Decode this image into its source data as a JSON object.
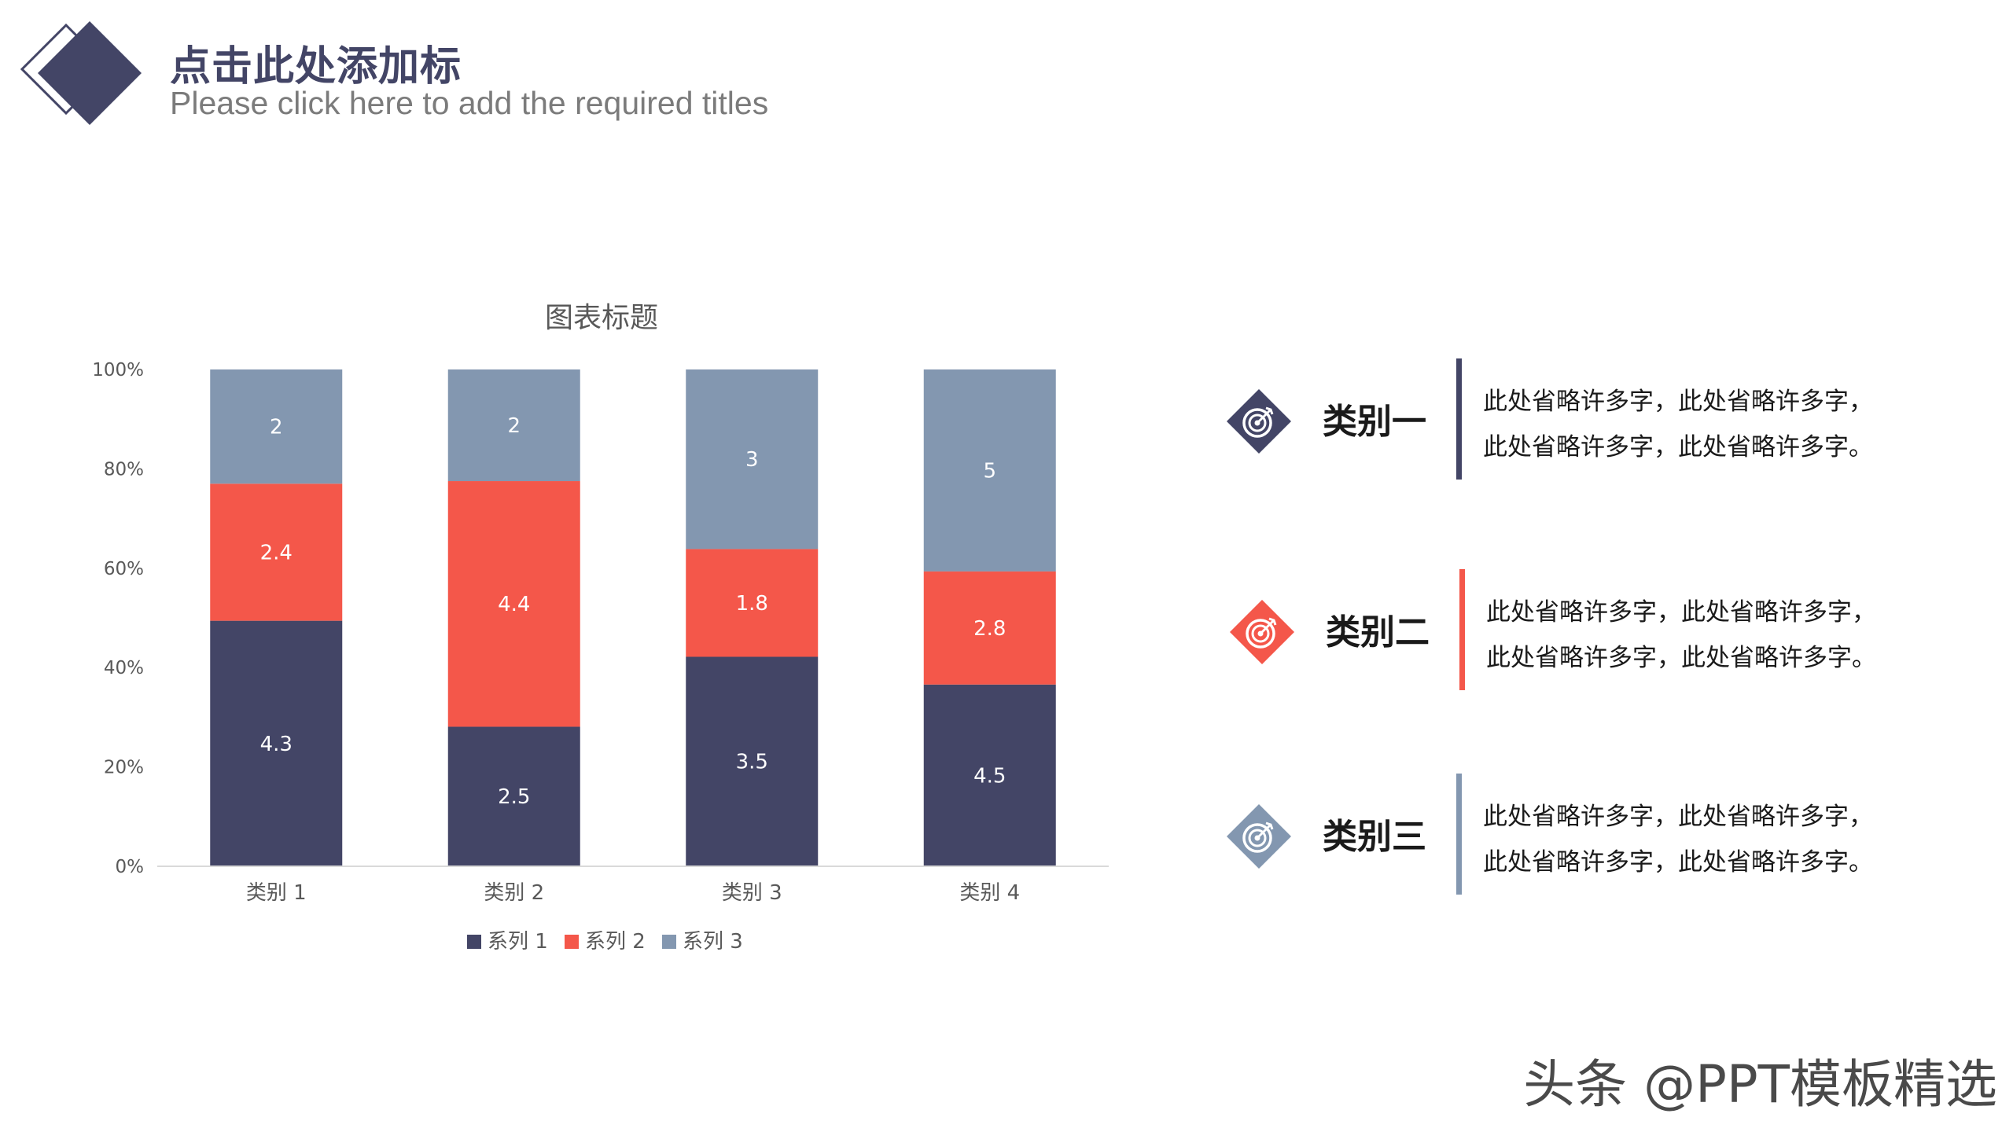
{
  "header": {
    "title": "点击此处添加标",
    "subtitle": "Please click here to add the required titles"
  },
  "colors": {
    "navy": "#434566",
    "red": "#f4574a",
    "slate": "#8397b0",
    "axis_text": "#595959"
  },
  "chart_data": {
    "type": "bar",
    "stacked": "percent",
    "title": "图表标题",
    "categories": [
      "类别 1",
      "类别 2",
      "类别 3",
      "类别 4"
    ],
    "series": [
      {
        "name": "系列 1",
        "values": [
          4.3,
          2.5,
          3.5,
          4.5
        ],
        "color": "#434566"
      },
      {
        "name": "系列 2",
        "values": [
          2.4,
          4.4,
          1.8,
          2.8
        ],
        "color": "#f4574a"
      },
      {
        "name": "系列 3",
        "values": [
          2,
          2,
          3,
          5
        ],
        "color": "#8397b0"
      }
    ],
    "y_ticks": [
      "0%",
      "20%",
      "40%",
      "60%",
      "80%",
      "100%"
    ],
    "ylim": [
      0,
      100
    ],
    "grid": false,
    "legend": "bottom",
    "data_labels": true
  },
  "categories_panel": [
    {
      "title": "类别一",
      "icon": "target-icon",
      "color": "#434566",
      "lines": [
        "此处省略许多字，此处省略许多字，",
        "此处省略许多字，此处省略许多字。"
      ]
    },
    {
      "title": "类别二",
      "icon": "target-icon",
      "color": "#f4574a",
      "lines": [
        "此处省略许多字，此处省略许多字，",
        "此处省略许多字，此处省略许多字。"
      ]
    },
    {
      "title": "类别三",
      "icon": "target-icon",
      "color": "#8397b0",
      "lines": [
        "此处省略许多字，此处省略许多字，",
        "此处省略许多字，此处省略许多字。"
      ]
    }
  ],
  "watermark": "头条 @PPT模板精选"
}
